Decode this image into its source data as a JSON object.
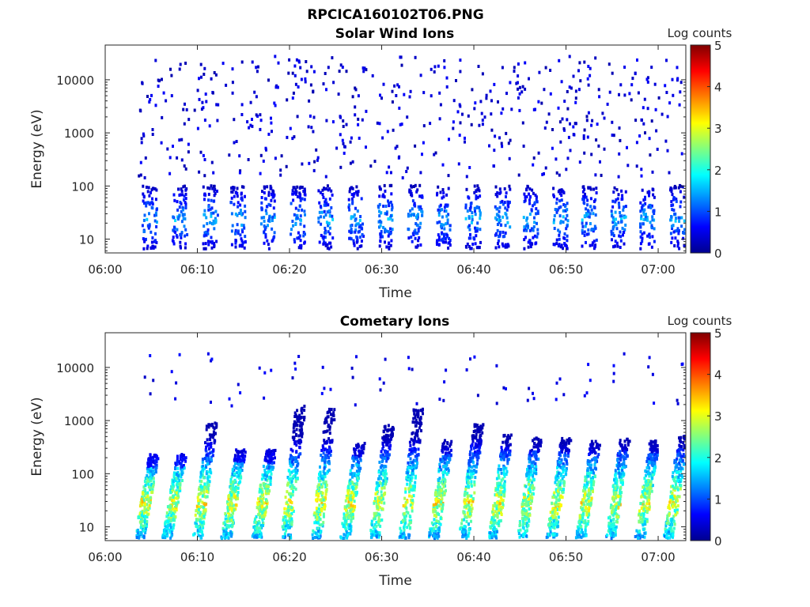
{
  "figure_title": "RPCICA160102T06.PNG",
  "colormap": [
    "#00008f",
    "#0000ff",
    "#0080ff",
    "#00ffff",
    "#80ff80",
    "#ffff00",
    "#ff8000",
    "#ff0000",
    "#800000"
  ],
  "chart_data": [
    {
      "type": "heatmap",
      "title": "Solar Wind Ions",
      "xlabel": "Time",
      "ylabel": "Energy (eV)",
      "x_range": [
        "06:00",
        "07:03"
      ],
      "y_range": [
        5.5,
        45000
      ],
      "y_scale": "log",
      "x_ticks": [
        "06:00",
        "06:10",
        "06:20",
        "06:30",
        "06:40",
        "06:50",
        "07:00"
      ],
      "y_ticks": [
        "10",
        "100",
        "1000",
        "10000"
      ],
      "y_tick_values": [
        10,
        100,
        1000,
        10000
      ],
      "colorbar": {
        "title": "Log counts",
        "range": [
          0,
          5
        ],
        "ticks": [
          "0",
          "1",
          "2",
          "3",
          "4",
          "5"
        ]
      },
      "grid": false,
      "sweep_start_minutes": [
        3.9,
        7.2,
        10.5,
        13.5,
        16.7,
        20.0,
        23.0,
        26.3,
        29.5,
        32.7,
        35.8,
        39.0,
        42.2,
        45.3,
        48.5,
        51.6,
        54.8,
        57.9,
        61.2
      ],
      "band_peak_energy_eV": 25,
      "band_peak_log_counts": 1.6,
      "scatter_energy_range_eV": [
        150,
        30000
      ]
    },
    {
      "type": "heatmap",
      "title": "Cometary Ions",
      "xlabel": "Time",
      "ylabel": "Energy (eV)",
      "x_range": [
        "06:00",
        "07:03"
      ],
      "y_range": [
        5.5,
        45000
      ],
      "y_scale": "log",
      "x_ticks": [
        "06:00",
        "06:10",
        "06:20",
        "06:30",
        "06:40",
        "06:50",
        "07:00"
      ],
      "y_ticks": [
        "10",
        "100",
        "1000",
        "10000"
      ],
      "y_tick_values": [
        10,
        100,
        1000,
        10000
      ],
      "colorbar": {
        "title": "Log counts",
        "range": [
          0,
          5
        ],
        "ticks": [
          "0",
          "1",
          "2",
          "3",
          "4",
          "5"
        ]
      },
      "grid": false,
      "sweep_start_minutes": [
        3.6,
        6.6,
        9.9,
        13.0,
        16.3,
        19.5,
        22.8,
        25.9,
        29.1,
        32.3,
        35.5,
        38.8,
        42.0,
        45.1,
        48.3,
        51.5,
        54.7,
        57.9,
        61.0
      ],
      "sweep_top_energy_eV": [
        250,
        250,
        1000,
        300,
        300,
        2000,
        1800,
        400,
        900,
        1800,
        450,
        900,
        600,
        500,
        500,
        450,
        500,
        450,
        550
      ],
      "band_peak_energy_eV": 30,
      "band_peak_log_counts": 3.3,
      "high_energy_scatter_eV": [
        2000,
        20000
      ]
    }
  ]
}
